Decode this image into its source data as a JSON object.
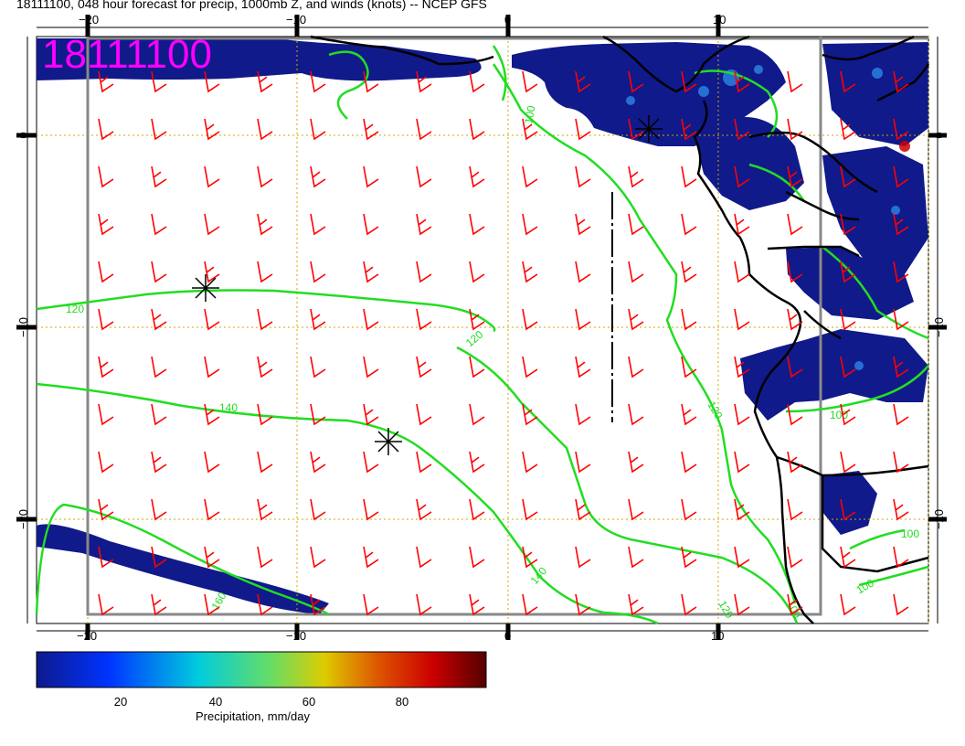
{
  "title": "18111100, 048 hour forecast for precip, 1000mb Z, and winds (knots) -- NCEP GFS",
  "stamp": "18111100",
  "colorbar": {
    "label": "Precipitation, mm/day",
    "ticks": [
      "20",
      "40",
      "60",
      "80"
    ],
    "colors": [
      "#0d1a8c",
      "#0033ff",
      "#00ccdd",
      "#66dd66",
      "#ddcc00",
      "#dd5500",
      "#cc0000",
      "#550000"
    ]
  },
  "axes": {
    "lon_ticks": [
      "−20",
      "−10",
      "0",
      "10"
    ],
    "lat_ticks": [
      "0",
      "−10",
      "−20"
    ]
  },
  "contour_labels": [
    "120",
    "140",
    "160",
    "100"
  ],
  "colors": {
    "wind": "#ff0000",
    "contour": "#22dd22",
    "coast": "#000000",
    "grid": "#ccaa00",
    "precip": "#101a8a"
  },
  "icons": {
    "low_marker": "asterisk-icon",
    "wind_barb": "wind-barb-icon"
  }
}
